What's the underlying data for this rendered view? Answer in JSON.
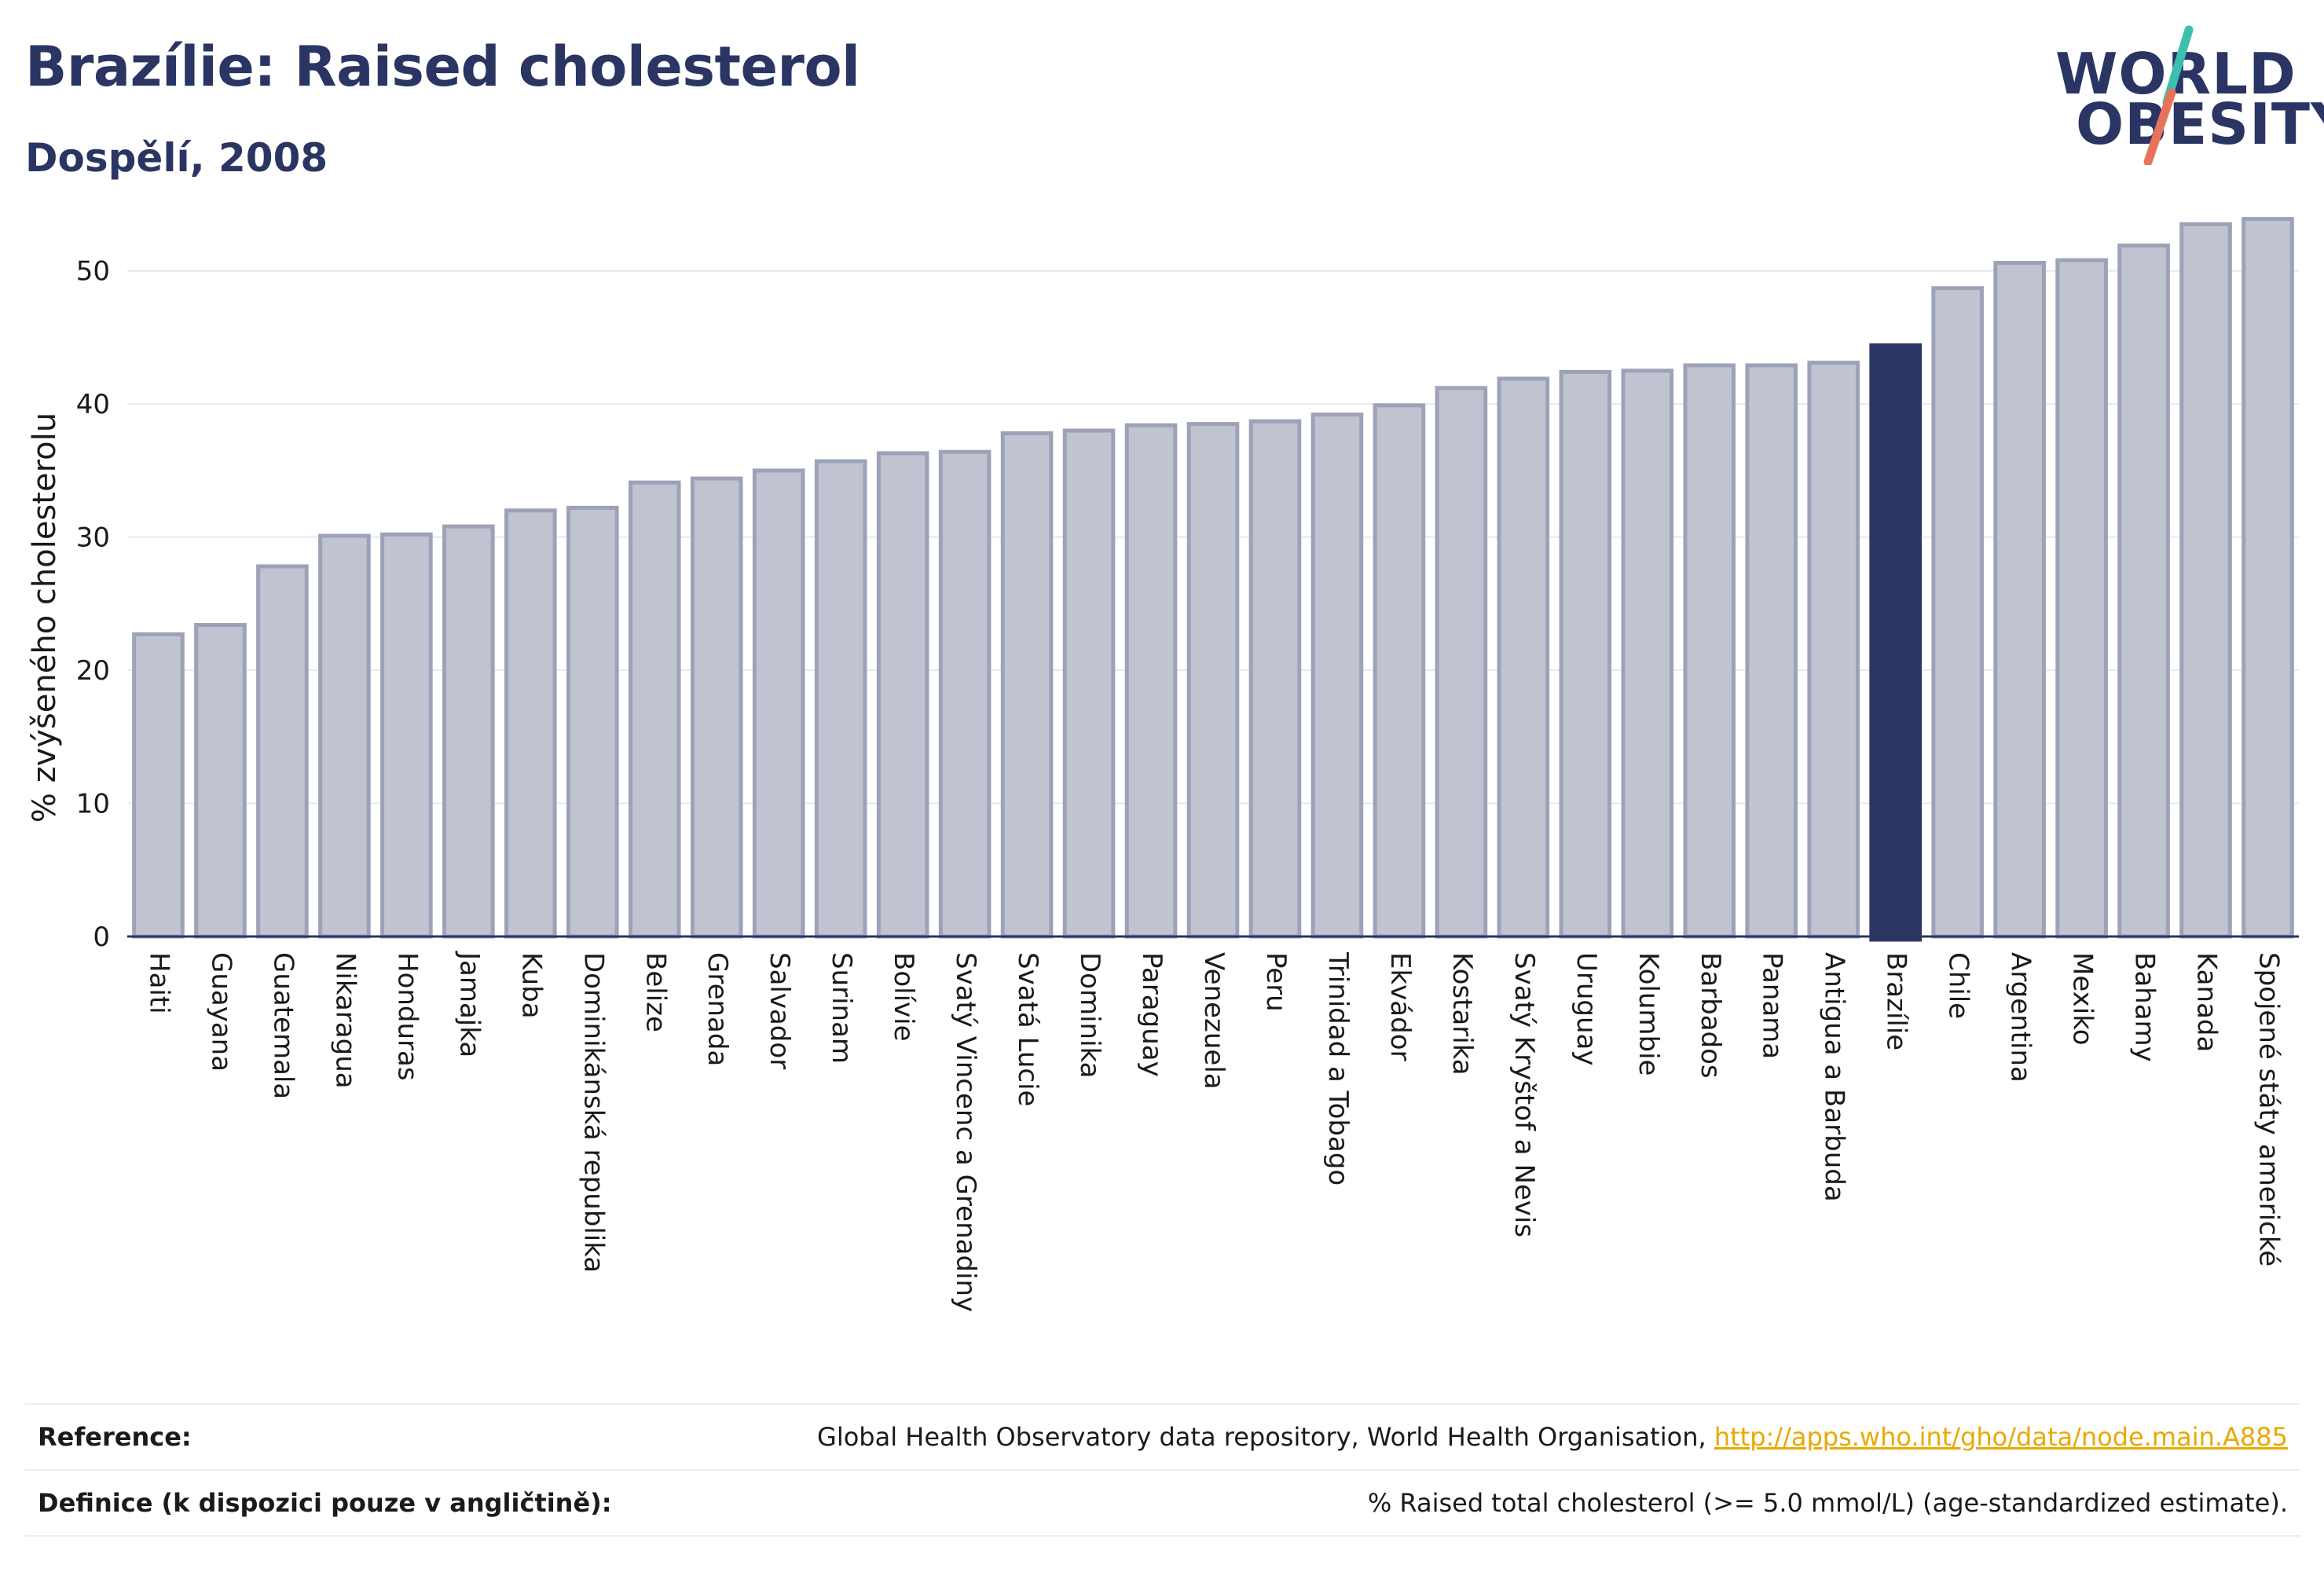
{
  "header": {
    "title": "Brazílie: Raised cholesterol",
    "subtitle": "Dospělí, 2008"
  },
  "logo": {
    "line1": "WORLD",
    "line2": "OBESITY",
    "slash_colors": [
      "#3cbfae",
      "#e8735a"
    ],
    "text_color": "#2a3563"
  },
  "chart_data": {
    "type": "bar",
    "ylabel": "% zvýšeného cholesterolu",
    "ylim": [
      0,
      55
    ],
    "yticks": [
      0,
      10,
      20,
      30,
      40,
      50
    ],
    "grid": true,
    "highlight": "Brazílie",
    "colors": {
      "bar": "#c0c3d0",
      "bar_edge": "#9da2b8",
      "highlight": "#2a3563"
    },
    "categories": [
      "Haiti",
      "Guayana",
      "Guatemala",
      "Nikaragua",
      "Honduras",
      "Jamajka",
      "Kuba",
      "Dominikánská republika",
      "Belize",
      "Grenada",
      "Salvador",
      "Surinam",
      "Bolívie",
      "Svatý Vincenc a Grenadiny",
      "Svatá Lucie",
      "Dominika",
      "Paraguay",
      "Venezuela",
      "Peru",
      "Trinidad a Tobago",
      "Ekvádor",
      "Kostarika",
      "Svatý Kryštof a Nevis",
      "Uruguay",
      "Kolumbie",
      "Barbados",
      "Panama",
      "Antigua a Barbuda",
      "Brazílie",
      "Chile",
      "Argentina",
      "Mexiko",
      "Bahamy",
      "Kanada",
      "Spojené státy americké"
    ],
    "values": [
      22.7,
      23.4,
      27.8,
      30.1,
      30.2,
      30.8,
      32.0,
      32.2,
      34.1,
      34.4,
      35.0,
      35.7,
      36.3,
      36.4,
      37.8,
      38.0,
      38.4,
      38.5,
      38.7,
      39.2,
      39.9,
      41.2,
      41.9,
      42.4,
      42.5,
      42.9,
      42.9,
      43.1,
      44.4,
      48.7,
      50.6,
      50.8,
      51.9,
      53.5,
      53.9
    ]
  },
  "footer": {
    "reference_label": "Reference:",
    "reference_text": "Global Health Observatory data repository, World Health Organisation, ",
    "reference_link": "http://apps.who.int/gho/data/node.main.A885",
    "definition_label": "Definice (k dispozici pouze v angličtině):",
    "definition_text": "% Raised total cholesterol (>= 5.0 mmol/L) (age-standardized estimate)."
  }
}
